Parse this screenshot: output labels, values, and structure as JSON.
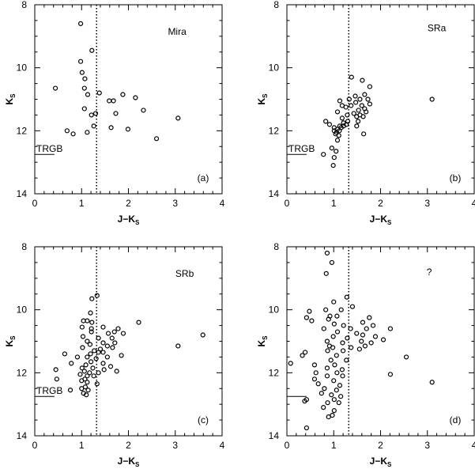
{
  "chart_data": [
    {
      "type": "scatter",
      "panel": "(a)",
      "label": "Mira",
      "xlabel": "J−K",
      "xlabel_sub": "S",
      "ylabel": "K",
      "ylabel_sub": "S",
      "xlim": [
        0,
        4
      ],
      "ylim": [
        14,
        8
      ],
      "y_inverted": true,
      "xticks": [
        "0",
        "1",
        "2",
        "3",
        "4"
      ],
      "yticks": [
        "8",
        "10",
        "12",
        "14"
      ],
      "vline_x": 1.32,
      "trgb": {
        "label": "TRGB",
        "y": 12.75,
        "x_range": [
          0,
          0.42
        ]
      },
      "points": [
        {
          "x": 0.98,
          "y": 8.6
        },
        {
          "x": 1.22,
          "y": 9.45
        },
        {
          "x": 0.98,
          "y": 9.8
        },
        {
          "x": 1.01,
          "y": 10.15
        },
        {
          "x": 1.07,
          "y": 10.35
        },
        {
          "x": 0.44,
          "y": 10.65
        },
        {
          "x": 1.06,
          "y": 10.65
        },
        {
          "x": 1.13,
          "y": 10.85
        },
        {
          "x": 1.38,
          "y": 10.8
        },
        {
          "x": 1.59,
          "y": 11.05
        },
        {
          "x": 1.68,
          "y": 11.05
        },
        {
          "x": 1.88,
          "y": 10.85
        },
        {
          "x": 2.15,
          "y": 10.95
        },
        {
          "x": 1.06,
          "y": 11.3
        },
        {
          "x": 1.3,
          "y": 11.45
        },
        {
          "x": 1.21,
          "y": 11.5
        },
        {
          "x": 1.73,
          "y": 11.45
        },
        {
          "x": 2.32,
          "y": 11.35
        },
        {
          "x": 3.06,
          "y": 11.6
        },
        {
          "x": 1.26,
          "y": 11.85
        },
        {
          "x": 1.63,
          "y": 11.9
        },
        {
          "x": 1.99,
          "y": 11.95
        },
        {
          "x": 0.69,
          "y": 12.0
        },
        {
          "x": 0.82,
          "y": 12.1
        },
        {
          "x": 1.12,
          "y": 12.05
        },
        {
          "x": 2.6,
          "y": 12.25
        }
      ]
    },
    {
      "type": "scatter",
      "panel": "(b)",
      "label": "SRa",
      "xlabel": "J−K",
      "xlabel_sub": "S",
      "ylabel": "K",
      "ylabel_sub": "S",
      "xlim": [
        0,
        4
      ],
      "ylim": [
        14,
        8
      ],
      "y_inverted": true,
      "xticks": [
        "0",
        "1",
        "2",
        "3",
        "4"
      ],
      "yticks": [
        "8",
        "10",
        "12",
        "14"
      ],
      "vline_x": 1.32,
      "trgb": {
        "label": "TRGB",
        "y": 12.75,
        "x_range": [
          0,
          0.42
        ]
      },
      "points": [
        {
          "x": 1.38,
          "y": 10.3
        },
        {
          "x": 1.61,
          "y": 10.4
        },
        {
          "x": 1.77,
          "y": 10.6
        },
        {
          "x": 1.46,
          "y": 10.9
        },
        {
          "x": 1.66,
          "y": 10.85
        },
        {
          "x": 1.33,
          "y": 11.0
        },
        {
          "x": 1.56,
          "y": 11.0
        },
        {
          "x": 1.73,
          "y": 11.0
        },
        {
          "x": 1.13,
          "y": 11.05
        },
        {
          "x": 1.47,
          "y": 11.1
        },
        {
          "x": 1.77,
          "y": 11.15
        },
        {
          "x": 1.18,
          "y": 11.2
        },
        {
          "x": 1.26,
          "y": 11.25
        },
        {
          "x": 1.37,
          "y": 11.2
        },
        {
          "x": 1.6,
          "y": 11.2
        },
        {
          "x": 1.66,
          "y": 11.3
        },
        {
          "x": 1.53,
          "y": 11.35
        },
        {
          "x": 1.69,
          "y": 11.4
        },
        {
          "x": 1.08,
          "y": 11.4
        },
        {
          "x": 1.43,
          "y": 11.45
        },
        {
          "x": 1.29,
          "y": 11.5
        },
        {
          "x": 1.49,
          "y": 11.55
        },
        {
          "x": 1.56,
          "y": 11.5
        },
        {
          "x": 1.63,
          "y": 11.55
        },
        {
          "x": 1.18,
          "y": 11.6
        },
        {
          "x": 1.3,
          "y": 11.7
        },
        {
          "x": 1.52,
          "y": 11.7
        },
        {
          "x": 0.83,
          "y": 11.7
        },
        {
          "x": 1.21,
          "y": 11.75
        },
        {
          "x": 1.27,
          "y": 11.8
        },
        {
          "x": 0.91,
          "y": 11.8
        },
        {
          "x": 1.13,
          "y": 11.85
        },
        {
          "x": 1.21,
          "y": 11.85
        },
        {
          "x": 1.01,
          "y": 11.9
        },
        {
          "x": 1.08,
          "y": 11.95
        },
        {
          "x": 1.16,
          "y": 11.9
        },
        {
          "x": 1.01,
          "y": 12.0
        },
        {
          "x": 1.06,
          "y": 12.05
        },
        {
          "x": 1.12,
          "y": 12.0
        },
        {
          "x": 1.04,
          "y": 12.1
        },
        {
          "x": 1.11,
          "y": 12.15
        },
        {
          "x": 1.49,
          "y": 11.85
        },
        {
          "x": 1.64,
          "y": 12.1
        },
        {
          "x": 1.08,
          "y": 12.3
        },
        {
          "x": 3.1,
          "y": 11.0
        },
        {
          "x": 0.78,
          "y": 12.75
        },
        {
          "x": 1.01,
          "y": 12.85
        },
        {
          "x": 0.99,
          "y": 13.1
        },
        {
          "x": 0.96,
          "y": 12.55
        },
        {
          "x": 1.05,
          "y": 12.65
        }
      ]
    },
    {
      "type": "scatter",
      "panel": "(c)",
      "label": "SRb",
      "xlabel": "J−K",
      "xlabel_sub": "S",
      "ylabel": "K",
      "ylabel_sub": "S",
      "xlim": [
        0,
        4
      ],
      "ylim": [
        14,
        8
      ],
      "y_inverted": true,
      "xticks": [
        "0",
        "1",
        "2",
        "3",
        "4"
      ],
      "yticks": [
        "8",
        "10",
        "12",
        "14"
      ],
      "vline_x": 1.32,
      "trgb": {
        "label": "TRGB",
        "y": 12.75,
        "x_range": [
          0,
          0.42
        ]
      },
      "points": [
        {
          "x": 1.33,
          "y": 9.55
        },
        {
          "x": 1.22,
          "y": 9.65
        },
        {
          "x": 1.19,
          "y": 10.1
        },
        {
          "x": 1.04,
          "y": 10.35
        },
        {
          "x": 1.12,
          "y": 10.35
        },
        {
          "x": 1.22,
          "y": 10.4
        },
        {
          "x": 2.22,
          "y": 10.4
        },
        {
          "x": 1.01,
          "y": 10.55
        },
        {
          "x": 1.21,
          "y": 10.6
        },
        {
          "x": 1.46,
          "y": 10.55
        },
        {
          "x": 1.78,
          "y": 10.6
        },
        {
          "x": 1.21,
          "y": 10.7
        },
        {
          "x": 1.57,
          "y": 10.75
        },
        {
          "x": 1.7,
          "y": 10.7
        },
        {
          "x": 1.89,
          "y": 10.75
        },
        {
          "x": 1.03,
          "y": 10.85
        },
        {
          "x": 1.36,
          "y": 10.9
        },
        {
          "x": 1.65,
          "y": 10.9
        },
        {
          "x": 3.59,
          "y": 10.8
        },
        {
          "x": 1.12,
          "y": 11.0
        },
        {
          "x": 1.46,
          "y": 11.05
        },
        {
          "x": 1.71,
          "y": 11.05
        },
        {
          "x": 1.18,
          "y": 11.1
        },
        {
          "x": 1.55,
          "y": 11.15
        },
        {
          "x": 3.06,
          "y": 11.15
        },
        {
          "x": 1.02,
          "y": 11.2
        },
        {
          "x": 1.4,
          "y": 11.25
        },
        {
          "x": 1.66,
          "y": 11.2
        },
        {
          "x": 1.27,
          "y": 11.3
        },
        {
          "x": 1.36,
          "y": 11.35
        },
        {
          "x": 1.19,
          "y": 11.4
        },
        {
          "x": 1.46,
          "y": 11.35
        },
        {
          "x": 0.64,
          "y": 11.4
        },
        {
          "x": 1.12,
          "y": 11.5
        },
        {
          "x": 1.55,
          "y": 11.5
        },
        {
          "x": 1.85,
          "y": 11.45
        },
        {
          "x": 0.91,
          "y": 11.5
        },
        {
          "x": 1.31,
          "y": 11.55
        },
        {
          "x": 1.2,
          "y": 11.65
        },
        {
          "x": 0.78,
          "y": 11.7
        },
        {
          "x": 1.46,
          "y": 11.7
        },
        {
          "x": 1.09,
          "y": 11.75
        },
        {
          "x": 1.62,
          "y": 11.8
        },
        {
          "x": 1.01,
          "y": 11.85
        },
        {
          "x": 1.24,
          "y": 11.85
        },
        {
          "x": 1.48,
          "y": 11.9
        },
        {
          "x": 0.45,
          "y": 11.9
        },
        {
          "x": 1.06,
          "y": 11.95
        },
        {
          "x": 1.17,
          "y": 12.0
        },
        {
          "x": 1.36,
          "y": 12.0
        },
        {
          "x": 1.75,
          "y": 11.95
        },
        {
          "x": 0.97,
          "y": 12.05
        },
        {
          "x": 1.12,
          "y": 12.1
        },
        {
          "x": 1.26,
          "y": 12.1
        },
        {
          "x": 1.07,
          "y": 12.2
        },
        {
          "x": 0.47,
          "y": 12.2
        },
        {
          "x": 1.0,
          "y": 12.25
        },
        {
          "x": 1.12,
          "y": 12.3
        },
        {
          "x": 1.33,
          "y": 12.35
        },
        {
          "x": 1.08,
          "y": 12.45
        },
        {
          "x": 1.0,
          "y": 12.5
        },
        {
          "x": 0.76,
          "y": 12.55
        },
        {
          "x": 1.14,
          "y": 12.55
        },
        {
          "x": 1.04,
          "y": 12.65
        },
        {
          "x": 1.1,
          "y": 12.7
        }
      ]
    },
    {
      "type": "scatter",
      "panel": "(d)",
      "label": "?",
      "xlabel": "J−K",
      "xlabel_sub": "S",
      "ylabel": "K",
      "ylabel_sub": "S",
      "xlim": [
        0,
        4
      ],
      "ylim": [
        14,
        8
      ],
      "y_inverted": true,
      "xticks": [
        "0",
        "1",
        "2",
        "3",
        "4"
      ],
      "yticks": [
        "8",
        "10",
        "12",
        "14"
      ],
      "vline_x": 1.32,
      "trgb": {
        "label": "",
        "y": 12.75,
        "x_range": [
          0,
          0.42
        ]
      },
      "points": [
        {
          "x": 0.86,
          "y": 8.2
        },
        {
          "x": 0.96,
          "y": 8.5
        },
        {
          "x": 0.84,
          "y": 8.85
        },
        {
          "x": 1.28,
          "y": 9.6
        },
        {
          "x": 1.0,
          "y": 9.75
        },
        {
          "x": 1.4,
          "y": 9.9
        },
        {
          "x": 0.48,
          "y": 10.05
        },
        {
          "x": 0.83,
          "y": 10.0
        },
        {
          "x": 1.16,
          "y": 10.0
        },
        {
          "x": 0.42,
          "y": 10.25
        },
        {
          "x": 0.92,
          "y": 10.2
        },
        {
          "x": 1.07,
          "y": 10.2
        },
        {
          "x": 0.53,
          "y": 10.35
        },
        {
          "x": 0.89,
          "y": 10.3
        },
        {
          "x": 1.76,
          "y": 10.25
        },
        {
          "x": 1.01,
          "y": 10.45
        },
        {
          "x": 1.21,
          "y": 10.5
        },
        {
          "x": 1.62,
          "y": 10.4
        },
        {
          "x": 1.84,
          "y": 10.5
        },
        {
          "x": 0.79,
          "y": 10.6
        },
        {
          "x": 1.36,
          "y": 10.6
        },
        {
          "x": 1.7,
          "y": 10.6
        },
        {
          "x": 2.21,
          "y": 10.6
        },
        {
          "x": 1.08,
          "y": 10.7
        },
        {
          "x": 1.49,
          "y": 10.75
        },
        {
          "x": 1.62,
          "y": 10.8
        },
        {
          "x": 0.99,
          "y": 10.85
        },
        {
          "x": 1.29,
          "y": 10.9
        },
        {
          "x": 1.89,
          "y": 10.85
        },
        {
          "x": 2.06,
          "y": 10.95
        },
        {
          "x": 0.86,
          "y": 11.0
        },
        {
          "x": 1.59,
          "y": 11.0
        },
        {
          "x": 1.19,
          "y": 11.05
        },
        {
          "x": 1.8,
          "y": 11.05
        },
        {
          "x": 0.91,
          "y": 11.15
        },
        {
          "x": 1.67,
          "y": 11.15
        },
        {
          "x": 0.98,
          "y": 11.2
        },
        {
          "x": 1.37,
          "y": 11.2
        },
        {
          "x": 1.55,
          "y": 11.25
        },
        {
          "x": 0.39,
          "y": 11.35
        },
        {
          "x": 0.87,
          "y": 11.3
        },
        {
          "x": 1.2,
          "y": 11.3
        },
        {
          "x": 0.33,
          "y": 11.45
        },
        {
          "x": 1.06,
          "y": 11.45
        },
        {
          "x": 2.55,
          "y": 11.5
        },
        {
          "x": 0.94,
          "y": 11.6
        },
        {
          "x": 1.27,
          "y": 11.6
        },
        {
          "x": 0.08,
          "y": 11.7
        },
        {
          "x": 0.59,
          "y": 11.75
        },
        {
          "x": 1.02,
          "y": 11.75
        },
        {
          "x": 0.86,
          "y": 11.85
        },
        {
          "x": 1.18,
          "y": 11.9
        },
        {
          "x": 0.62,
          "y": 12.0
        },
        {
          "x": 1.07,
          "y": 12.0
        },
        {
          "x": 2.21,
          "y": 12.05
        },
        {
          "x": 0.86,
          "y": 12.1
        },
        {
          "x": 1.19,
          "y": 12.1
        },
        {
          "x": 0.59,
          "y": 12.2
        },
        {
          "x": 1.0,
          "y": 12.25
        },
        {
          "x": 3.1,
          "y": 12.3
        },
        {
          "x": 0.67,
          "y": 12.35
        },
        {
          "x": 1.13,
          "y": 12.4
        },
        {
          "x": 0.8,
          "y": 12.5
        },
        {
          "x": 1.06,
          "y": 12.55
        },
        {
          "x": 0.74,
          "y": 12.65
        },
        {
          "x": 0.95,
          "y": 12.7
        },
        {
          "x": 1.15,
          "y": 12.75
        },
        {
          "x": 0.42,
          "y": 12.85
        },
        {
          "x": 1.01,
          "y": 12.85
        },
        {
          "x": 0.38,
          "y": 12.9
        },
        {
          "x": 0.87,
          "y": 12.95
        },
        {
          "x": 1.11,
          "y": 12.95
        },
        {
          "x": 0.78,
          "y": 13.1
        },
        {
          "x": 1.01,
          "y": 13.2
        },
        {
          "x": 0.97,
          "y": 13.35
        },
        {
          "x": 0.89,
          "y": 13.4
        },
        {
          "x": 0.42,
          "y": 13.75
        }
      ]
    }
  ]
}
